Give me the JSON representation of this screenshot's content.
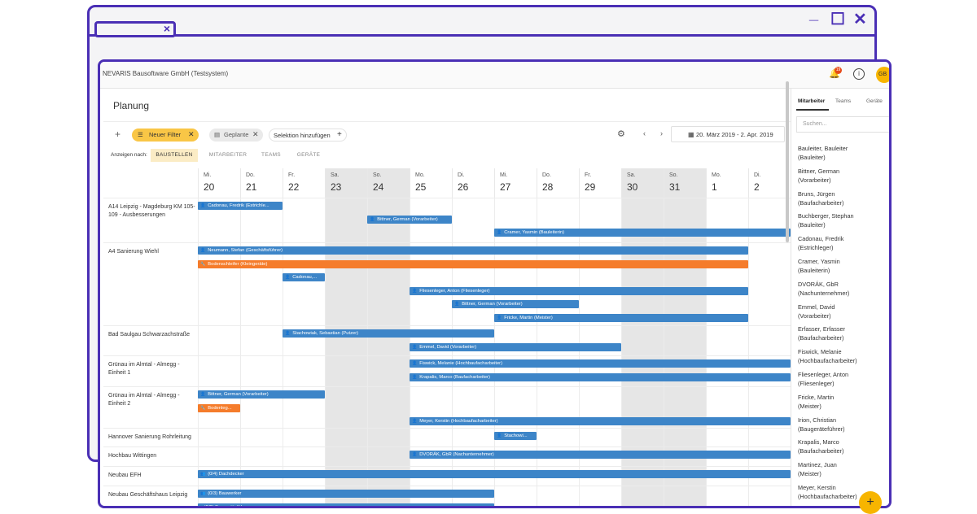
{
  "window": {
    "back_tab_close": "×",
    "minimize": "_",
    "maximize": "☐",
    "close": "✕"
  },
  "app": {
    "title": "NEVARIS Bausoftware GmbH (Testsystem)",
    "notification_count": "19",
    "avatar": "GB"
  },
  "page": {
    "title": "Planung"
  },
  "toolbar": {
    "add": "+",
    "filter_chip": "Neuer Filter",
    "planned_chip": "Geplante",
    "add_selection": "Selektion hinzufügen",
    "date_range": "20. März 2019 - 2. Apr. 2019",
    "show_by": "Anzeigen nach:",
    "view_tabs": [
      "BAUSTELLEN",
      "MITARBEITER",
      "TEAMS",
      "GERÄTE"
    ]
  },
  "days": [
    {
      "wd": "Mi.",
      "num": "20",
      "weekend": false
    },
    {
      "wd": "Do.",
      "num": "21",
      "weekend": false
    },
    {
      "wd": "Fr.",
      "num": "22",
      "weekend": false
    },
    {
      "wd": "Sa.",
      "num": "23",
      "weekend": true
    },
    {
      "wd": "So.",
      "num": "24",
      "weekend": true
    },
    {
      "wd": "Mo.",
      "num": "25",
      "weekend": false
    },
    {
      "wd": "Di.",
      "num": "26",
      "weekend": false
    },
    {
      "wd": "Mi.",
      "num": "27",
      "weekend": false
    },
    {
      "wd": "Do.",
      "num": "28",
      "weekend": false
    },
    {
      "wd": "Fr.",
      "num": "29",
      "weekend": false
    },
    {
      "wd": "Sa.",
      "num": "30",
      "weekend": true
    },
    {
      "wd": "So.",
      "num": "31",
      "weekend": true
    },
    {
      "wd": "Mo.",
      "num": "1",
      "weekend": false
    },
    {
      "wd": "Di.",
      "num": "2",
      "weekend": false
    }
  ],
  "projects": [
    {
      "label": "A14 Leipzig - Magdeburg KM 105-109 - Ausbesserungen",
      "bars": [
        {
          "text": "Cadonau, Fredrik (Estrichle...",
          "start": 0,
          "days": 2,
          "lane": 0,
          "color": "blue",
          "icon": "person"
        },
        {
          "text": "Bittner, German (Vorarbeiter)",
          "start": 4,
          "days": 2,
          "lane": 1,
          "color": "blue",
          "icon": "person"
        },
        {
          "text": "Cramer, Yasmin (Bauleiterin)",
          "start": 7,
          "days": 7.1,
          "lane": 2,
          "color": "blue",
          "icon": "person"
        }
      ]
    },
    {
      "label": "A4 Sanierung Wiehl",
      "bars": [
        {
          "text": "Neumann, Stefan (Geschäftsführer)",
          "start": 0,
          "days": 13,
          "lane": 0,
          "color": "blue",
          "icon": "person"
        },
        {
          "text": "Bodenschleifer (Kleingeräte)",
          "start": 0,
          "days": 13,
          "lane": 1,
          "color": "orange",
          "icon": "tool"
        },
        {
          "text": "Cadonau,...",
          "start": 2,
          "days": 1,
          "lane": 2,
          "color": "blue",
          "icon": "person"
        },
        {
          "text": "Fliesenleger, Anton (Fliesenleger)",
          "start": 5,
          "days": 8,
          "lane": 3,
          "color": "blue",
          "icon": "person"
        },
        {
          "text": "Bittner, German (Vorarbeiter)",
          "start": 6,
          "days": 3,
          "lane": 4,
          "color": "blue",
          "icon": "person"
        },
        {
          "text": "Fricke, Martin (Meister)",
          "start": 7,
          "days": 6,
          "lane": 5,
          "color": "blue",
          "icon": "person"
        }
      ]
    },
    {
      "label": "Bad Saulgau Schwarzachstraße",
      "bars": [
        {
          "text": "Stachowiak, Sebastian (Putzer)",
          "start": 2,
          "days": 5,
          "lane": 0,
          "color": "blue",
          "icon": "person"
        },
        {
          "text": "Emmel, David (Vorarbeiter)",
          "start": 5,
          "days": 5,
          "lane": 1,
          "color": "blue",
          "icon": "person"
        }
      ]
    },
    {
      "label": "Grünau im Almtal - Almegg - Einheit 1",
      "bars": [
        {
          "text": "Fiswick, Melanie (Hochbaufacharbeiter)",
          "start": 5,
          "days": 9.1,
          "lane": 0,
          "color": "blue",
          "icon": "person"
        },
        {
          "text": "Krapalis, Marco (Baufacharbeiter)",
          "start": 5,
          "days": 9.1,
          "lane": 1,
          "color": "blue",
          "icon": "person"
        }
      ]
    },
    {
      "label": "Grünau im Almtal - Almegg - Einheit 2",
      "bars": [
        {
          "text": "Bittner, German (Vorarbeiter)",
          "start": 0,
          "days": 3,
          "lane": 0,
          "color": "blue",
          "icon": "person"
        },
        {
          "text": "Bodenleg...",
          "start": 0,
          "days": 1,
          "lane": 1,
          "color": "orange",
          "icon": "tool"
        },
        {
          "text": "Meyer, Kerstin (Hochbaufacharbeiter)",
          "start": 5,
          "days": 9.1,
          "lane": 2,
          "color": "blue",
          "icon": "person"
        }
      ]
    },
    {
      "label": "Hannover Sanierung Rohrleitung",
      "bars": [
        {
          "text": "Stachowi...",
          "start": 7,
          "days": 1,
          "lane": 0,
          "color": "blue",
          "icon": "person"
        }
      ]
    },
    {
      "label": "Hochbau Wittingen",
      "bars": [
        {
          "text": "DVORÁK, GbR (Nachunternehmer)",
          "start": 5,
          "days": 9.1,
          "lane": 0,
          "color": "blue",
          "icon": "person"
        }
      ]
    },
    {
      "label": "Neubau EFH",
      "bars": [
        {
          "text": "(0/4) Dachdecker",
          "start": 0,
          "days": 14.1,
          "lane": 0,
          "color": "blue",
          "icon": "group"
        }
      ]
    },
    {
      "label": "Neubau Geschäftshaus Leipzig",
      "bars": [
        {
          "text": "(0/3) Bauwerker",
          "start": 0,
          "days": 7,
          "lane": 0,
          "color": "blue",
          "icon": "group"
        },
        {
          "text": "(2/2) Baugeräteführer",
          "start": 0,
          "days": 7,
          "lane": 1,
          "color": "blue",
          "icon": "chevron"
        }
      ]
    }
  ],
  "side": {
    "tabs": [
      "Mitarbeiter",
      "Teams",
      "Geräte"
    ],
    "search_placeholder": "Suchen...",
    "people": [
      {
        "name": "Bauleiter, Bauleiter",
        "role": "(Bauleiter)"
      },
      {
        "name": "Bittner, German",
        "role": "(Vorarbeiter)"
      },
      {
        "name": "Bruns, Jürgen",
        "role": "(Baufacharbeiter)"
      },
      {
        "name": "Buchberger, Stephan",
        "role": "(Bauleiter)"
      },
      {
        "name": "Cadonau, Fredrik",
        "role": "(Estrichleger)"
      },
      {
        "name": "Cramer, Yasmin",
        "role": "(Bauleiterin)"
      },
      {
        "name": "DVORÁK, GbR",
        "role": "(Nachunternehmer)"
      },
      {
        "name": "Emmel, David",
        "role": "(Vorarbeiter)"
      },
      {
        "name": "Erfasser, Erfasser",
        "role": "(Baufacharbeiter)"
      },
      {
        "name": "Fiswick, Melanie",
        "role": "(Hochbaufacharbeiter)"
      },
      {
        "name": "Fliesenleger, Anton",
        "role": "(Fliesenleger)"
      },
      {
        "name": "Fricke, Martin",
        "role": "(Meister)"
      },
      {
        "name": "Irion, Christian",
        "role": "(Baugeräteführer)"
      },
      {
        "name": "Krapalis, Marco",
        "role": "(Baufacharbeiter)"
      },
      {
        "name": "Martinez, Juan",
        "role": "(Meister)"
      },
      {
        "name": "Meyer, Kerstin",
        "role": "(Hochbaufacharbeiter)"
      }
    ]
  },
  "fab": "+"
}
